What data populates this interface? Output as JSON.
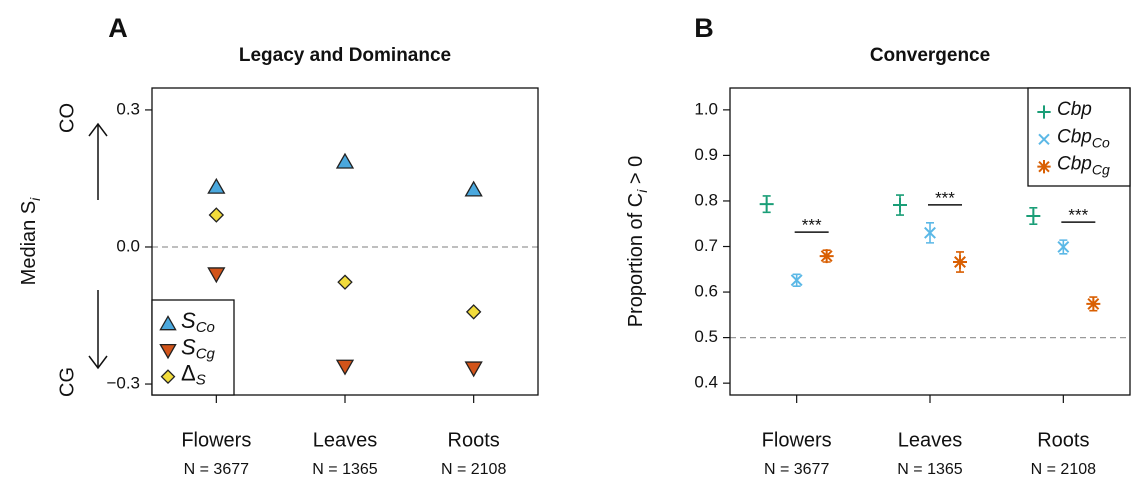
{
  "chart_data": [
    {
      "type": "scatter",
      "panel": "A",
      "title": "Legacy and Dominance",
      "ylabel": "Median S",
      "ylabel_sub": "i",
      "y_top_label": "CO",
      "y_bottom_label": "CG",
      "categories": [
        "Flowers",
        "Leaves",
        "Roots"
      ],
      "category_notes": [
        "N = 3677",
        "N = 1365",
        "N = 2108"
      ],
      "ylim": [
        -0.324,
        0.348
      ],
      "yticks": [
        {
          "value": -0.3,
          "label": "−0.3"
        },
        {
          "value": 0,
          "label": "0.0"
        },
        0.3
      ],
      "reference_line": 0,
      "legend": "lower left",
      "series": [
        {
          "name": "S",
          "subscript": "Co",
          "marker": "triangle-up",
          "color": "#4aa8de",
          "values": [
            0.131,
            0.186,
            0.125
          ]
        },
        {
          "name": "S",
          "subscript": "Cg",
          "marker": "triangle-down",
          "color": "#d2541a",
          "values": [
            -0.059,
            -0.261,
            -0.265
          ]
        },
        {
          "name": "Δ",
          "subscript": "S",
          "marker": "diamond",
          "color": "#f2dc3c",
          "values": [
            0.07,
            -0.077,
            -0.142
          ]
        }
      ]
    },
    {
      "type": "scatter",
      "panel": "B",
      "title": "Convergence",
      "ylabel": "Proportion of C",
      "ylabel_sub": "i",
      "ylabel_after": " > 0",
      "categories": [
        "Flowers",
        "Leaves",
        "Roots"
      ],
      "category_notes": [
        "N = 3677",
        "N = 1365",
        "N = 2108"
      ],
      "ylim": [
        0.374,
        1.048
      ],
      "yticks": [
        0.4,
        0.5,
        0.6,
        0.7,
        0.8,
        0.9,
        {
          "value": 1,
          "label": "1.0"
        }
      ],
      "reference_line": 0.5,
      "legend": "upper right",
      "annotations": [
        "***",
        "***",
        "***"
      ],
      "series": [
        {
          "name": "Cbp",
          "marker": "plus",
          "color": "#1a9e77",
          "values": [
            0.793,
            0.791,
            0.767
          ],
          "errors": [
            0.018,
            0.022,
            0.018
          ]
        },
        {
          "name": "Cbp",
          "subscript": "Co",
          "marker": "x",
          "color": "#5bb8e6",
          "values": [
            0.626,
            0.73,
            0.699
          ],
          "errors": [
            0.013,
            0.022,
            0.015
          ]
        },
        {
          "name": "Cbp",
          "subscript": "Cg",
          "marker": "asterisk",
          "color": "#d95f02",
          "values": [
            0.679,
            0.666,
            0.574
          ],
          "errors": [
            0.013,
            0.022,
            0.015
          ]
        }
      ]
    }
  ]
}
